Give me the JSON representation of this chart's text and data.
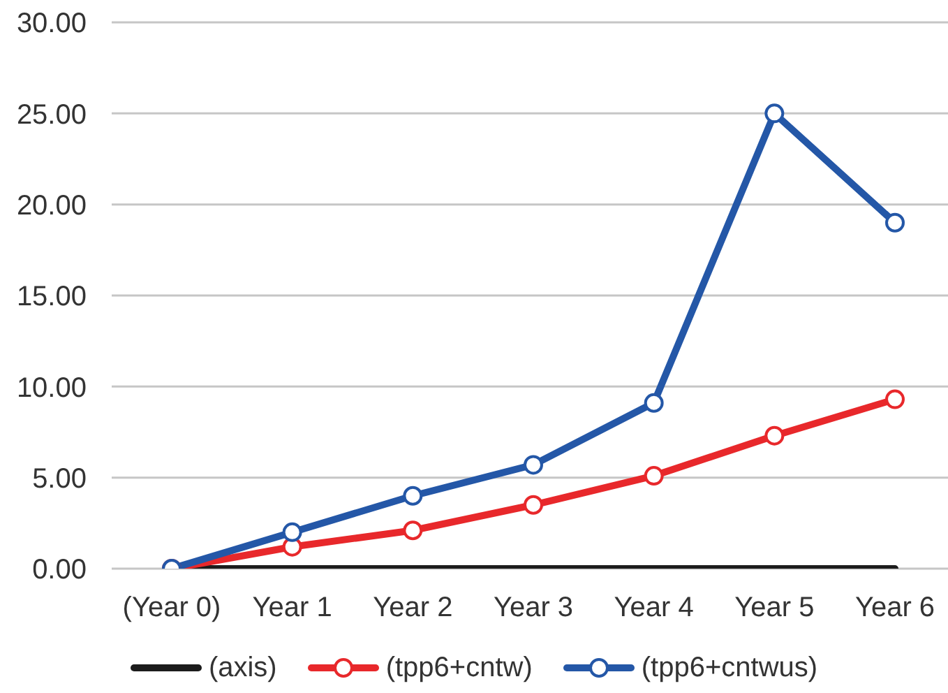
{
  "chart_data": {
    "type": "line",
    "categories": [
      "(Year 0)",
      "Year 1",
      "Year 2",
      "Year 3",
      "Year 4",
      "Year 5",
      "Year 6"
    ],
    "series": [
      {
        "name": "(axis)",
        "color": "#1c1c1c",
        "values": [
          0,
          0,
          0,
          0,
          0,
          0,
          0
        ],
        "marker": "none"
      },
      {
        "name": "(tpp6+cntw)",
        "color": "#e8282b",
        "values": [
          0,
          1.2,
          2.1,
          3.5,
          5.1,
          7.3,
          9.3
        ]
      },
      {
        "name": "(tpp6+cntwus)",
        "color": "#2457a7",
        "values": [
          0,
          2.0,
          4.0,
          5.7,
          9.1,
          25.0,
          19.0
        ]
      }
    ],
    "ylim": [
      0,
      30
    ],
    "yticks": [
      {
        "value": 0,
        "label": "0.00"
      },
      {
        "value": 5,
        "label": "5.00"
      },
      {
        "value": 10,
        "label": "10.00"
      },
      {
        "value": 15,
        "label": "15.00"
      },
      {
        "value": 20,
        "label": "20.00"
      },
      {
        "value": 25,
        "label": "25.00"
      },
      {
        "value": 30,
        "label": "30.00"
      }
    ],
    "grid": "y",
    "legend": "bottom",
    "marker": "circle"
  }
}
